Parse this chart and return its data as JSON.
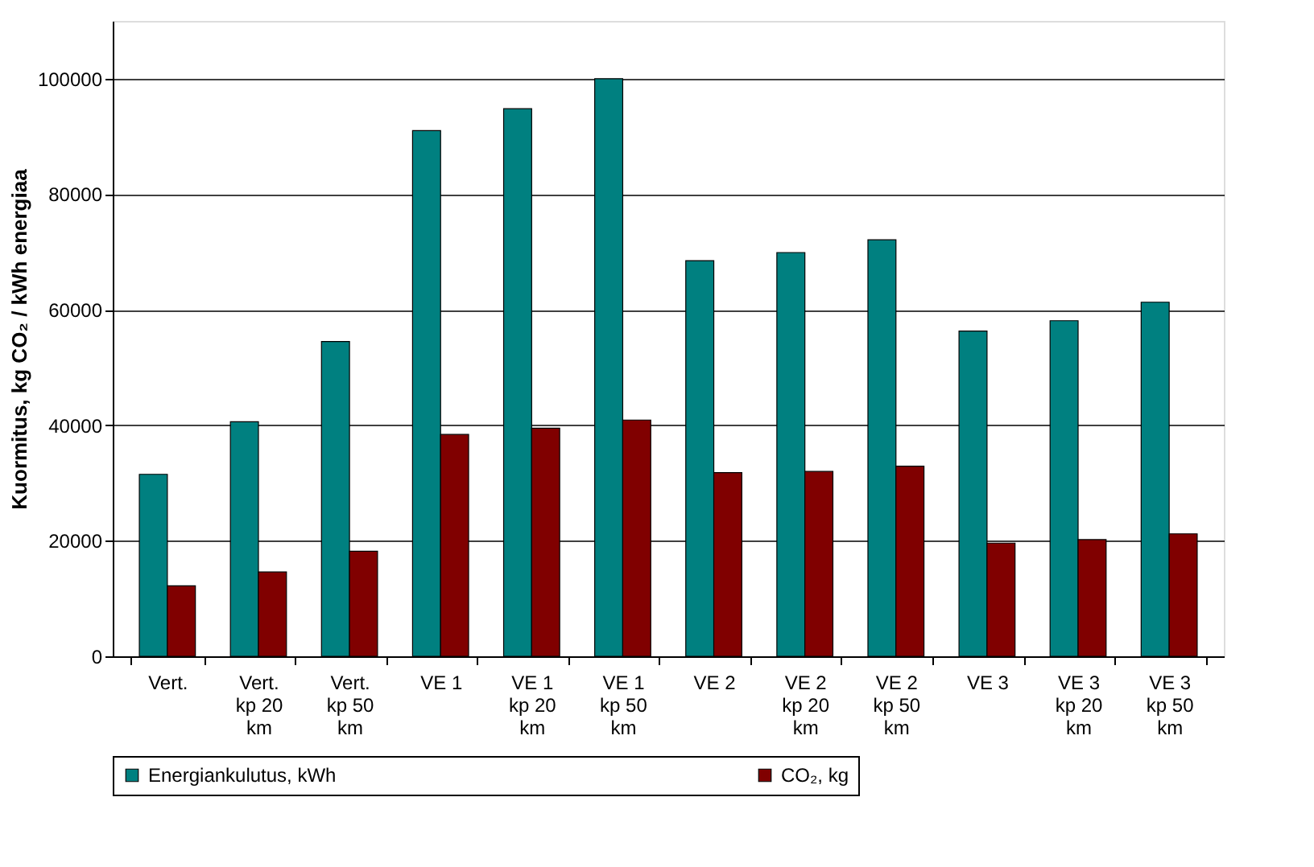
{
  "chart_data": {
    "type": "bar",
    "ylabel": "Kuormitus, kg CO₂ / kWh energiaa",
    "categories": [
      "Vert.",
      "Vert.\nkp 20\nkm",
      "Vert.\nkp 50\nkm",
      "VE 1",
      "VE 1\nkp 20\nkm",
      "VE 1\nkp 50\nkm",
      "VE 2",
      "VE 2\nkp 20\nkm",
      "VE 2\nkp 50\nkm",
      "VE 3",
      "VE 3\nkp 20\nkm",
      "VE 3\nkp 50\nkm"
    ],
    "series": [
      {
        "name": "Energiankulutus, kWh",
        "color": "#008080",
        "values": [
          31500,
          40600,
          54500,
          91000,
          94800,
          100000,
          68500,
          69900,
          72100,
          56300,
          58100,
          61300
        ]
      },
      {
        "name": "CO₂, kg",
        "color": "#800000",
        "values": [
          12200,
          14600,
          18200,
          38400,
          39500,
          40900,
          31800,
          32000,
          32900,
          19600,
          20200,
          21200
        ]
      }
    ],
    "ylim": [
      0,
      110000
    ],
    "yticks": [
      0,
      20000,
      40000,
      60000,
      80000,
      100000
    ],
    "grid": "y",
    "legend": "bottom"
  }
}
